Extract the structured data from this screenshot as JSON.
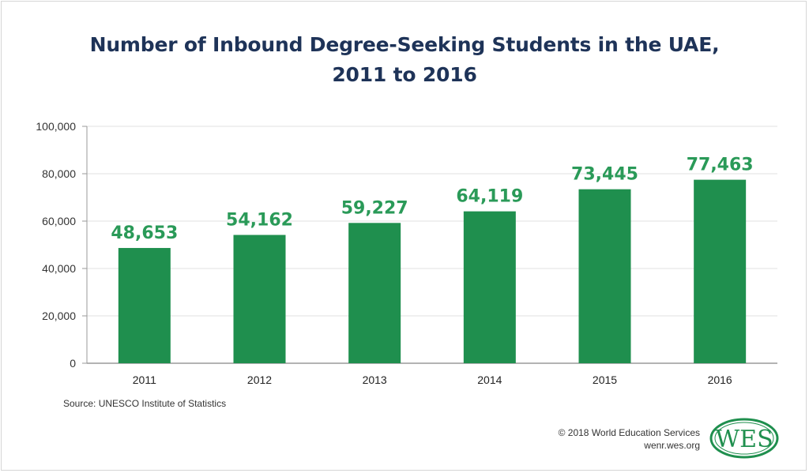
{
  "chart_data": {
    "type": "bar",
    "title_line1": "Number of Inbound Degree-Seeking Students in the UAE,",
    "title_line2": "2011 to 2016",
    "categories": [
      "2011",
      "2012",
      "2013",
      "2014",
      "2015",
      "2016"
    ],
    "values": [
      48653,
      54162,
      59227,
      64119,
      73445,
      77463
    ],
    "data_labels": [
      "48,653",
      "54,162",
      "59,227",
      "64,119",
      "73,445",
      "77,463"
    ],
    "ylim": [
      0,
      100000
    ],
    "yticks": [
      0,
      20000,
      40000,
      60000,
      80000,
      100000
    ],
    "ytick_labels": [
      "0",
      "20,000",
      "40,000",
      "60,000",
      "80,000",
      "100,000"
    ],
    "xlabel": "",
    "ylabel": "",
    "grid": true,
    "bar_color": "#1f8f4e",
    "label_color": "#2a9a58"
  },
  "footer": {
    "source": "Source: UNESCO Institute of Statistics",
    "copyright": "© 2018 World Education Services",
    "website": "wenr.wes.org",
    "logo_text": "WES"
  }
}
